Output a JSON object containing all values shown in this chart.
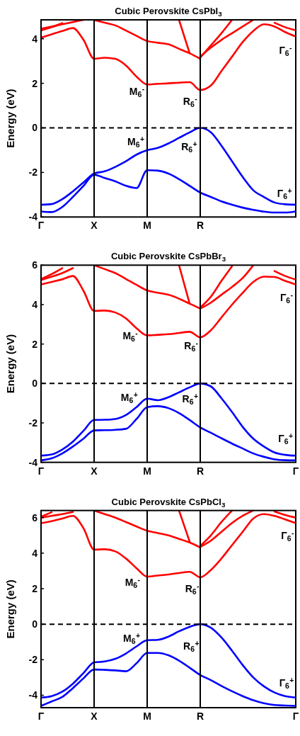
{
  "chart_data": [
    {
      "type": "line",
      "title": "Cubic Perovskite CsPbI$_{3}$",
      "ylabel": "Energy (eV)",
      "categories": [
        "Γ",
        null,
        null,
        null,
        null,
        "X",
        null,
        null,
        null,
        null,
        "M",
        null,
        null,
        null,
        null,
        "R",
        null,
        null,
        null,
        null,
        null,
        null,
        null,
        null,
        null
      ],
      "ylim": [
        -4,
        4.85
      ],
      "yticks": [
        -4,
        -2,
        0,
        2,
        4
      ],
      "ref_lines": [
        {
          "axis": "x",
          "value": "X",
          "color": "#000000",
          "line_style": "solid"
        },
        {
          "axis": "x",
          "value": "M",
          "color": "#000000",
          "line_style": "solid"
        },
        {
          "axis": "x",
          "value": "R",
          "color": "#000000",
          "line_style": "solid"
        },
        {
          "axis": "y",
          "value": 0,
          "color": "#000000",
          "line_style": "dashed"
        }
      ],
      "series": [
        {
          "color": "#0000ff",
          "values": [
            -3.45,
            -3.42,
            -3.2,
            -2.85,
            -2.45,
            -2.05,
            -1.95,
            -1.75,
            -1.5,
            -1.2,
            -1.0,
            -0.9,
            -0.7,
            -0.45,
            -0.2,
            0.0,
            -0.2,
            -0.8,
            -1.5,
            -2.2,
            -2.8,
            -3.1,
            -3.35,
            -3.43,
            -3.45
          ]
        },
        {
          "color": "#0000ff",
          "values": [
            -3.75,
            -3.78,
            -3.55,
            -3.1,
            -2.6,
            -2.1,
            -2.25,
            -2.4,
            -2.6,
            -2.7,
            -1.9,
            -1.92,
            -2.05,
            -2.3,
            -2.6,
            -2.9,
            -3.1,
            -3.3,
            -3.45,
            -3.58,
            -3.68,
            -3.76,
            -3.8,
            -3.8,
            -3.75
          ]
        },
        {
          "color": "#ff0000",
          "values": [
            4.05,
            4.2,
            4.35,
            4.48,
            3.95,
            3.1,
            3.15,
            3.1,
            2.8,
            2.3,
            1.95,
            1.98,
            2.0,
            2.03,
            2.05,
            1.7,
            1.9,
            2.55,
            3.2,
            3.85,
            4.35,
            4.65,
            4.55,
            4.3,
            4.1
          ]
        },
        {
          "color": "#ff0000",
          "values": [
            4.37,
            4.52,
            4.7,
            null,
            null,
            null,
            null,
            null,
            null,
            null,
            null,
            null,
            null,
            null,
            null,
            null,
            null,
            null,
            null,
            null,
            null,
            null,
            null,
            null,
            null
          ]
        },
        {
          "color": "#ff0000",
          "values": [
            4.45,
            4.55,
            4.65,
            4.75,
            4.85,
            null,
            null,
            null,
            null,
            null,
            null,
            null,
            null,
            null,
            null,
            null,
            null,
            null,
            null,
            null,
            null,
            null,
            null,
            null,
            null
          ]
        },
        {
          "color": "#ff0000",
          "values": [
            null,
            null,
            null,
            null,
            null,
            4.84,
            4.72,
            4.6,
            4.37,
            4.13,
            3.9,
            3.82,
            3.75,
            3.55,
            3.35,
            3.1,
            null,
            null,
            null,
            null,
            null,
            null,
            null,
            null,
            null
          ]
        },
        {
          "color": "#ff0000",
          "values": [
            null,
            null,
            null,
            null,
            null,
            null,
            null,
            null,
            null,
            null,
            null,
            null,
            null,
            4.85,
            3.35,
            null,
            null,
            null,
            null,
            null,
            null,
            null,
            null,
            null,
            null
          ]
        },
        {
          "color": "#ff0000",
          "values": [
            null,
            null,
            null,
            null,
            null,
            null,
            null,
            null,
            null,
            null,
            null,
            null,
            null,
            null,
            null,
            3.15,
            3.7,
            4.25,
            4.85,
            null,
            null,
            null,
            null,
            null,
            null
          ]
        },
        {
          "color": "#ff0000",
          "values": [
            null,
            null,
            null,
            null,
            null,
            null,
            null,
            null,
            null,
            null,
            null,
            null,
            null,
            null,
            null,
            3.2,
            3.6,
            3.95,
            4.25,
            4.55,
            4.85,
            null,
            null,
            null,
            null
          ]
        },
        {
          "color": "#ff0000",
          "values": [
            null,
            null,
            null,
            null,
            null,
            null,
            null,
            null,
            null,
            null,
            null,
            null,
            null,
            null,
            null,
            null,
            null,
            null,
            null,
            null,
            null,
            null,
            4.72,
            4.52,
            4.38
          ]
        }
      ],
      "annotations": [
        "M$_{6}$$^{-}$",
        "R$_{6}$$^{-}$",
        "M$_{6}$$^{+}$",
        "R$_{6}$$^{+}$",
        "Γ$_{6}$$^{-}$",
        "Γ$_{6}$$^{+}$"
      ]
    },
    {
      "type": "line",
      "title": "Cubic Perovskite CsPbBr$_{3}$",
      "ylabel": "Energy (eV)",
      "categories": [
        "Γ",
        null,
        null,
        null,
        null,
        "X",
        null,
        null,
        null,
        null,
        "M",
        null,
        null,
        null,
        null,
        "R",
        null,
        null,
        null,
        null,
        null,
        null,
        null,
        null,
        "Γ"
      ],
      "ylim": [
        -4,
        6
      ],
      "yticks": [
        -4,
        -2,
        0,
        2,
        4,
        6
      ],
      "ref_lines": [
        {
          "axis": "x",
          "value": "X",
          "color": "#000000",
          "line_style": "solid"
        },
        {
          "axis": "x",
          "value": "M",
          "color": "#000000",
          "line_style": "solid"
        },
        {
          "axis": "x",
          "value": "R",
          "color": "#000000",
          "line_style": "solid"
        },
        {
          "axis": "y",
          "value": 0,
          "color": "#000000",
          "line_style": "dashed"
        }
      ],
      "series": [
        {
          "color": "#0000ff",
          "values": [
            -3.66,
            -3.6,
            -3.35,
            -2.95,
            -2.4,
            -1.85,
            -1.84,
            -1.8,
            -1.6,
            -1.2,
            -0.77,
            -0.85,
            -0.7,
            -0.45,
            -0.2,
            0.0,
            -0.15,
            -0.75,
            -1.45,
            -2.2,
            -2.8,
            -3.2,
            -3.5,
            -3.62,
            -3.66
          ]
        },
        {
          "color": "#0000ff",
          "values": [
            -3.9,
            -3.8,
            -3.55,
            -3.2,
            -2.8,
            -2.38,
            -2.37,
            -2.35,
            -2.3,
            -1.8,
            -1.2,
            -1.15,
            -1.25,
            -1.5,
            -1.85,
            -2.23,
            -2.5,
            -2.78,
            -3.05,
            -3.3,
            -3.55,
            -3.72,
            -3.85,
            -3.89,
            -3.9
          ]
        },
        {
          "color": "#ff0000",
          "values": [
            5.02,
            5.15,
            5.28,
            5.45,
            4.7,
            3.68,
            3.7,
            3.6,
            3.3,
            2.8,
            2.44,
            2.47,
            2.5,
            2.56,
            2.62,
            2.34,
            2.7,
            3.35,
            4.0,
            4.6,
            5.15,
            5.42,
            5.4,
            5.2,
            5.02
          ]
        },
        {
          "color": "#ff0000",
          "values": [
            5.25,
            5.42,
            5.6,
            5.85,
            null,
            null,
            null,
            null,
            null,
            null,
            null,
            null,
            null,
            null,
            null,
            null,
            null,
            null,
            null,
            null,
            null,
            null,
            null,
            null,
            null
          ]
        },
        {
          "color": "#ff0000",
          "values": [
            5.3,
            5.55,
            5.85,
            null,
            null,
            null,
            null,
            null,
            null,
            null,
            null,
            null,
            null,
            null,
            null,
            null,
            null,
            null,
            null,
            null,
            null,
            null,
            null,
            null,
            null
          ]
        },
        {
          "color": "#ff0000",
          "values": [
            null,
            null,
            null,
            null,
            null,
            6.0,
            5.8,
            5.6,
            5.3,
            5.0,
            4.72,
            4.6,
            4.5,
            4.3,
            4.05,
            3.8,
            null,
            null,
            null,
            null,
            null,
            null,
            null,
            null,
            null
          ]
        },
        {
          "color": "#ff0000",
          "values": [
            null,
            null,
            null,
            null,
            null,
            null,
            null,
            null,
            null,
            null,
            null,
            null,
            null,
            6.0,
            4.05,
            null,
            null,
            null,
            null,
            null,
            null,
            null,
            null,
            null,
            null
          ]
        },
        {
          "color": "#ff0000",
          "values": [
            null,
            null,
            null,
            null,
            null,
            null,
            null,
            null,
            null,
            null,
            null,
            null,
            null,
            null,
            null,
            3.85,
            4.4,
            5.2,
            5.95,
            null,
            null,
            null,
            null,
            null,
            null
          ]
        },
        {
          "color": "#ff0000",
          "values": [
            null,
            null,
            null,
            null,
            null,
            null,
            null,
            null,
            null,
            null,
            null,
            null,
            null,
            null,
            null,
            3.8,
            4.1,
            4.5,
            4.9,
            5.35,
            6.0,
            null,
            null,
            null,
            null
          ]
        },
        {
          "color": "#ff0000",
          "values": [
            null,
            null,
            null,
            null,
            null,
            null,
            null,
            null,
            null,
            null,
            null,
            null,
            null,
            null,
            null,
            null,
            null,
            null,
            null,
            null,
            null,
            null,
            5.7,
            5.45,
            5.27
          ]
        }
      ],
      "annotations": [
        "M$_{6}$$^{-}$",
        "R$_{6}$$^{-}$",
        "M$_{6}$$^{+}$",
        "R$_{6}$$^{+}$",
        "Γ$_{6}$$^{-}$",
        "Γ$_{6}$$^{+}$"
      ]
    },
    {
      "type": "line",
      "title": "Cubic Perovskite CsPbCl$_{3}$",
      "ylabel": "Energy (eV)",
      "categories": [
        "Γ",
        null,
        null,
        null,
        null,
        "X",
        null,
        null,
        null,
        null,
        "M",
        null,
        null,
        null,
        null,
        "R",
        null,
        null,
        null,
        null,
        null,
        null,
        null,
        null,
        "Γ"
      ],
      "ylim": [
        -4.7,
        6.4
      ],
      "yticks": [
        -4,
        -2,
        0,
        2,
        4,
        6
      ],
      "ref_lines": [
        {
          "axis": "x",
          "value": "X",
          "color": "#000000",
          "line_style": "solid"
        },
        {
          "axis": "x",
          "value": "M",
          "color": "#000000",
          "line_style": "solid"
        },
        {
          "axis": "x",
          "value": "R",
          "color": "#000000",
          "line_style": "solid"
        },
        {
          "axis": "y",
          "value": 0,
          "color": "#000000",
          "line_style": "dashed"
        }
      ],
      "series": [
        {
          "color": "#0000ff",
          "values": [
            -4.13,
            -4.05,
            -3.8,
            -3.35,
            -2.75,
            -2.15,
            -2.1,
            -1.95,
            -1.65,
            -1.25,
            -0.9,
            -0.88,
            -0.7,
            -0.4,
            -0.15,
            0.0,
            -0.2,
            -0.75,
            -1.5,
            -2.3,
            -3.0,
            -3.5,
            -3.85,
            -4.05,
            -4.13
          ]
        },
        {
          "color": "#0000ff",
          "values": [
            -4.6,
            -4.35,
            -4.1,
            -3.6,
            -3.05,
            -2.55,
            -2.57,
            -2.6,
            -2.65,
            -2.2,
            -1.62,
            -1.62,
            -1.75,
            -2.05,
            -2.45,
            -2.86,
            -3.15,
            -3.48,
            -3.78,
            -4.05,
            -4.28,
            -4.45,
            -4.55,
            -4.58,
            -4.6
          ]
        },
        {
          "color": "#ff0000",
          "values": [
            5.69,
            5.8,
            5.95,
            6.1,
            5.4,
            4.2,
            4.22,
            4.1,
            3.7,
            3.15,
            2.68,
            2.74,
            2.8,
            2.88,
            2.95,
            2.64,
            3.05,
            3.7,
            4.45,
            5.2,
            5.95,
            6.2,
            6.1,
            5.9,
            5.69
          ]
        },
        {
          "color": "#ff0000",
          "values": [
            6.0,
            6.1,
            6.2,
            6.32,
            null,
            null,
            null,
            null,
            null,
            null,
            null,
            null,
            null,
            null,
            null,
            null,
            null,
            null,
            null,
            null,
            null,
            null,
            null,
            null,
            null
          ]
        },
        {
          "color": "#ff0000",
          "values": [
            6.05,
            6.3,
            null,
            null,
            null,
            null,
            null,
            null,
            null,
            null,
            null,
            null,
            null,
            null,
            null,
            null,
            null,
            null,
            null,
            null,
            null,
            null,
            null,
            null,
            null
          ]
        },
        {
          "color": "#ff0000",
          "values": [
            null,
            null,
            null,
            null,
            null,
            6.4,
            6.2,
            6.0,
            5.75,
            5.5,
            5.26,
            5.13,
            5.0,
            4.8,
            4.6,
            4.32,
            null,
            null,
            null,
            null,
            null,
            null,
            null,
            null,
            null
          ]
        },
        {
          "color": "#ff0000",
          "values": [
            null,
            null,
            null,
            null,
            null,
            null,
            null,
            null,
            null,
            null,
            null,
            null,
            null,
            6.4,
            4.65,
            null,
            null,
            null,
            null,
            null,
            null,
            null,
            null,
            null,
            null
          ]
        },
        {
          "color": "#ff0000",
          "values": [
            null,
            null,
            null,
            null,
            null,
            null,
            null,
            null,
            null,
            null,
            null,
            null,
            null,
            null,
            null,
            4.4,
            5.0,
            5.75,
            6.4,
            null,
            null,
            null,
            null,
            null,
            null
          ]
        },
        {
          "color": "#ff0000",
          "values": [
            null,
            null,
            null,
            null,
            null,
            null,
            null,
            null,
            null,
            null,
            null,
            null,
            null,
            null,
            null,
            4.35,
            4.7,
            5.2,
            5.7,
            6.1,
            6.4,
            null,
            null,
            null,
            null
          ]
        },
        {
          "color": "#ff0000",
          "values": [
            null,
            null,
            null,
            null,
            null,
            null,
            null,
            null,
            null,
            null,
            null,
            null,
            null,
            null,
            null,
            null,
            null,
            null,
            null,
            null,
            null,
            null,
            6.35,
            6.15,
            6.0
          ]
        }
      ],
      "annotations": [
        "M$_{6}$$^{-}$",
        "R$_{6}$$^{-}$",
        "M$_{6}$$^{+}$",
        "R$_{6}$$^{+}$",
        "Γ$_{6}$$^{-}$",
        "Γ$_{6}$$^{+}$"
      ]
    }
  ]
}
